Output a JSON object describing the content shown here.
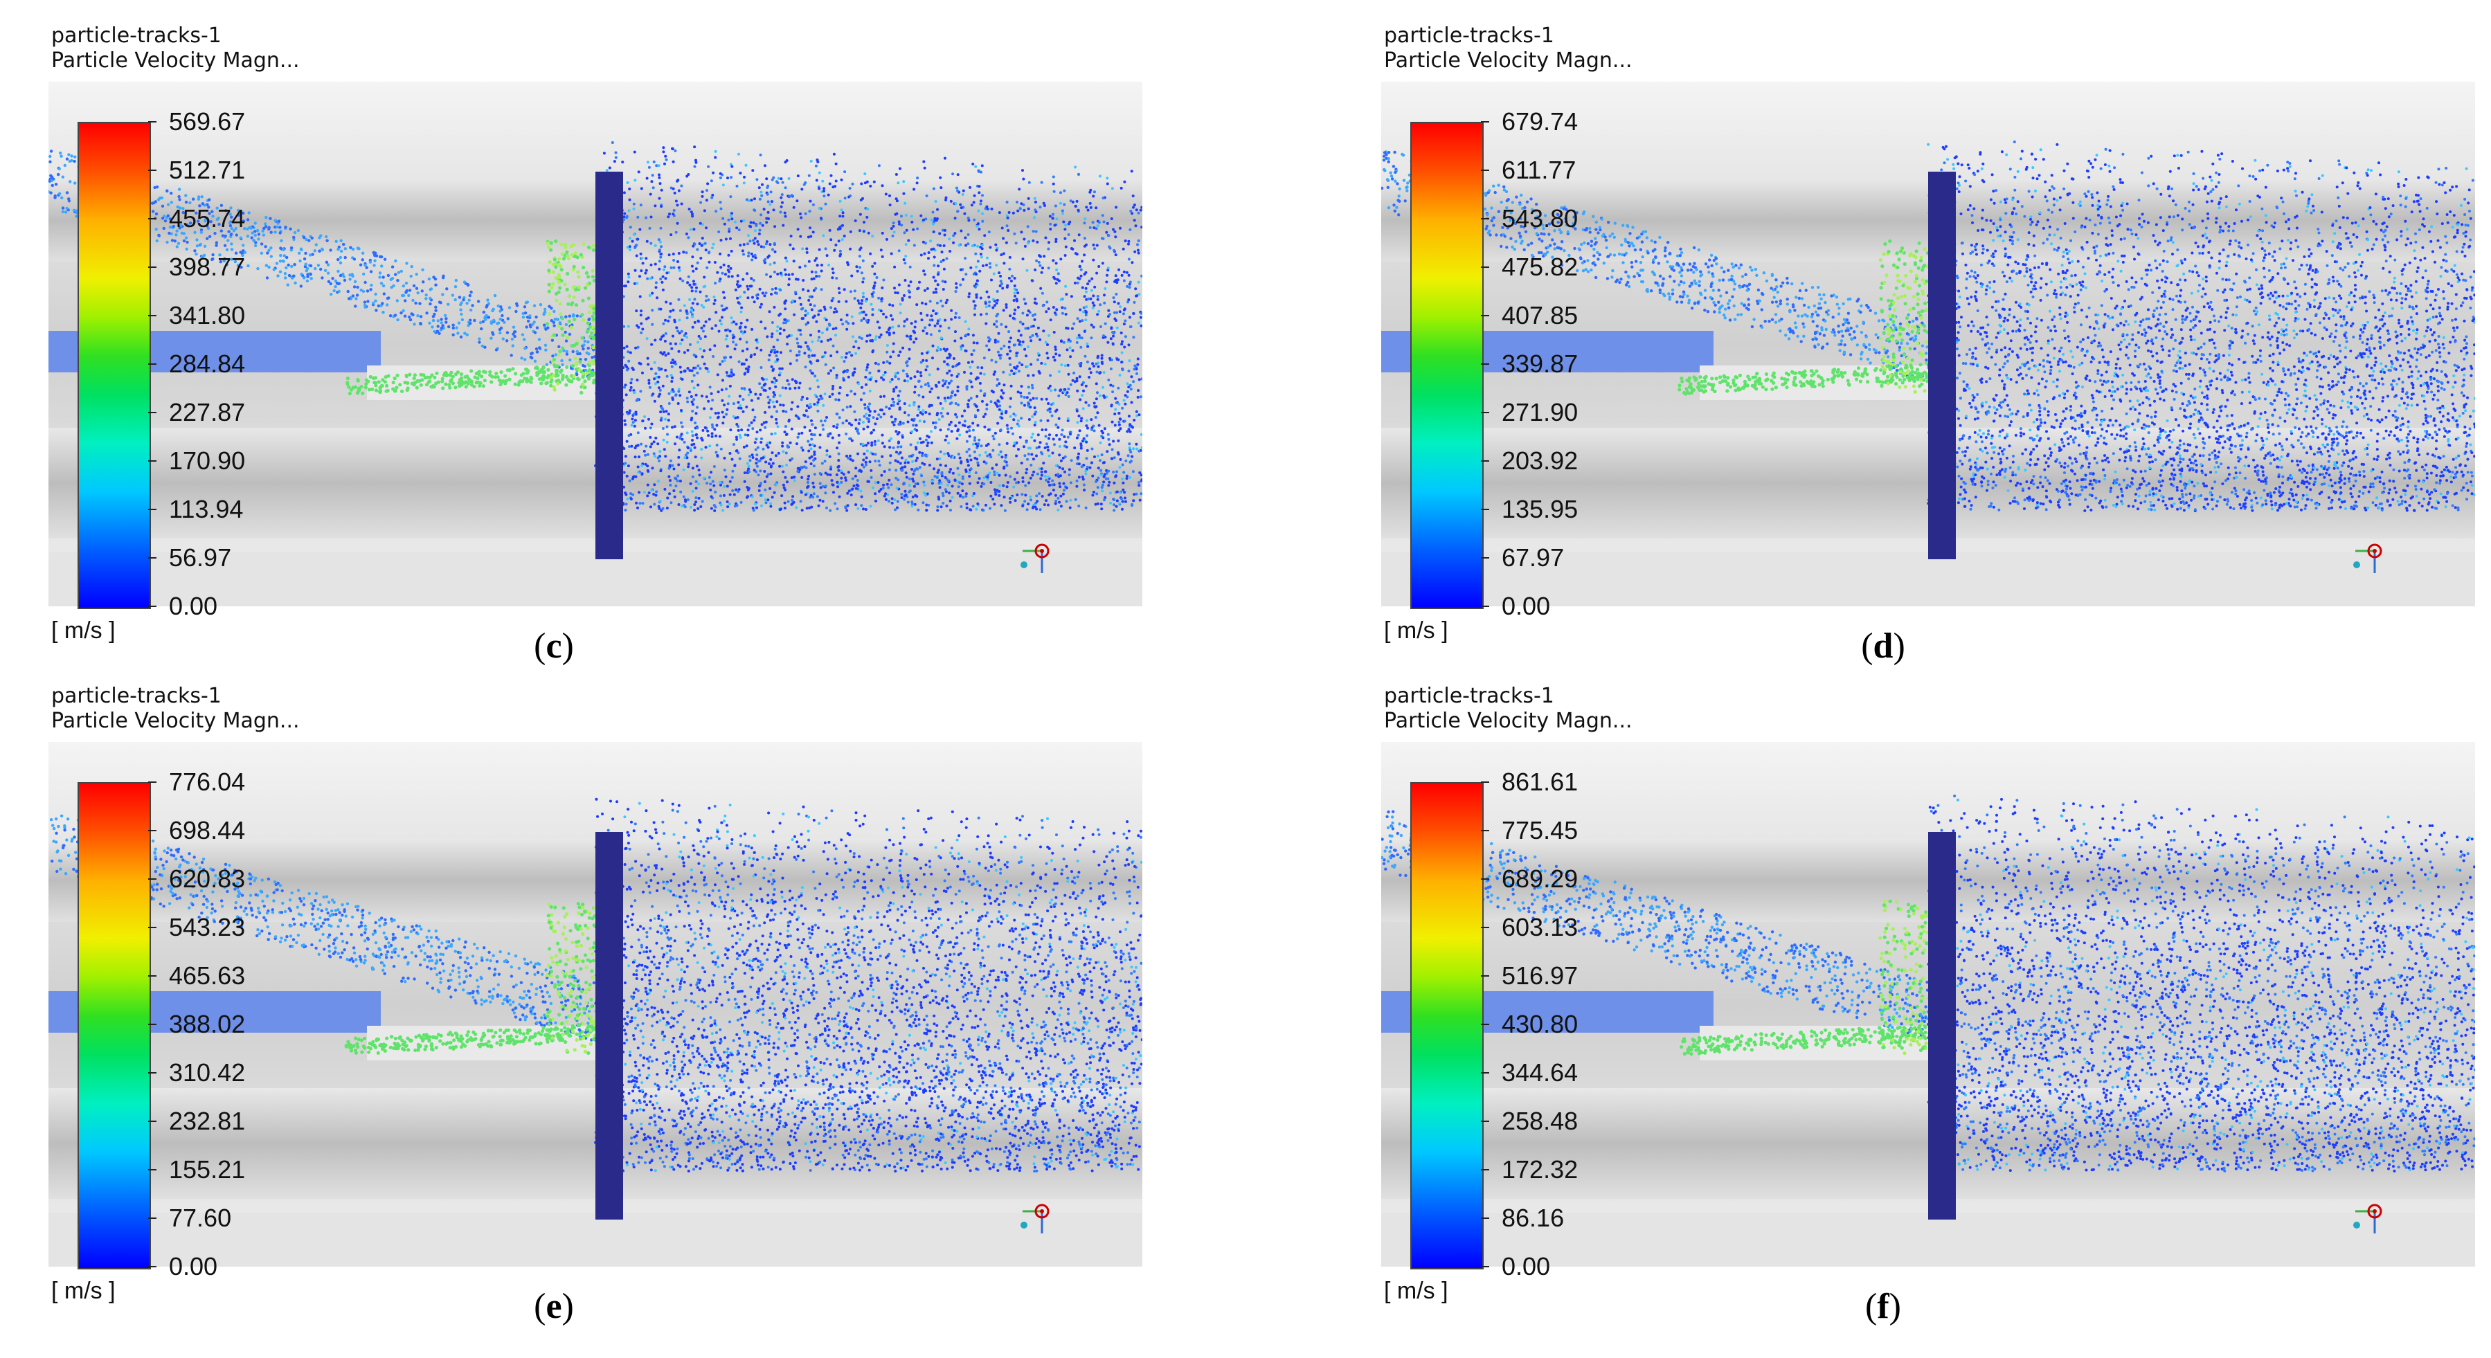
{
  "colors": {
    "background": "#ffffff",
    "geometry_dark": "#bdbdbd",
    "geometry_light": "#ececec",
    "particle_low": "#1e3cff",
    "particle_mid": "#3aa8ff",
    "particle_high": "#5fe36a"
  },
  "panels": [
    {
      "id": "c",
      "title": "particle-tracks-1",
      "subtitle": "Particle Velocity Magn...",
      "unit": "[ m/s ]",
      "caption": "c",
      "ticks": [
        "569.67",
        "512.71",
        "455.74",
        "398.77",
        "341.80",
        "284.84",
        "227.87",
        "170.90",
        "113.94",
        "56.97",
        "0.00"
      ]
    },
    {
      "id": "d",
      "title": "particle-tracks-1",
      "subtitle": "Particle Velocity Magn...",
      "unit": "[ m/s ]",
      "caption": "d",
      "ticks": [
        "679.74",
        "611.77",
        "543.80",
        "475.82",
        "407.85",
        "339.87",
        "271.90",
        "203.92",
        "135.95",
        "67.97",
        "0.00"
      ]
    },
    {
      "id": "e",
      "title": "particle-tracks-1",
      "subtitle": "Particle Velocity Magn...",
      "unit": "[ m/s ]",
      "caption": "e",
      "ticks": [
        "776.04",
        "698.44",
        "620.83",
        "543.23",
        "465.63",
        "388.02",
        "310.42",
        "232.81",
        "155.21",
        "77.60",
        "0.00"
      ]
    },
    {
      "id": "f",
      "title": "particle-tracks-1",
      "subtitle": "Particle Velocity Magn...",
      "unit": "[ m/s ]",
      "caption": "f",
      "ticks": [
        "861.61",
        "775.45",
        "689.29",
        "603.13",
        "516.97",
        "430.80",
        "344.64",
        "258.48",
        "172.32",
        "86.16",
        "0.00"
      ]
    }
  ],
  "icons": {
    "axis_triad": "axis-triad-icon"
  }
}
